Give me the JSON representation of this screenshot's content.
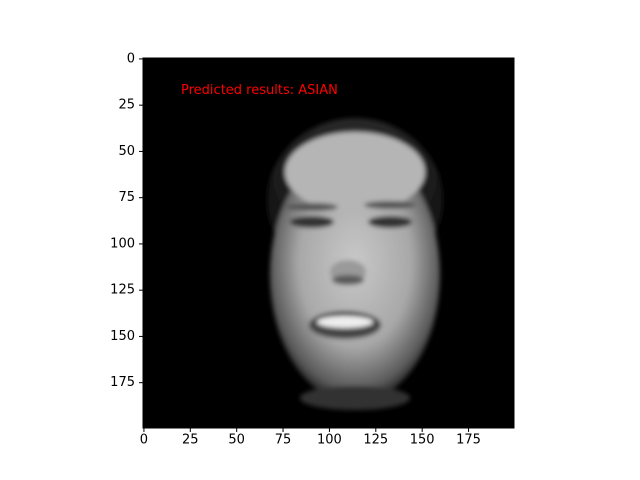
{
  "chart_data": {
    "type": "image",
    "xlim": [
      -0.5,
      199.5
    ],
    "ylim": [
      199.5,
      -0.5
    ],
    "xticks": [
      0,
      25,
      50,
      75,
      100,
      125,
      150,
      175
    ],
    "yticks": [
      0,
      25,
      50,
      75,
      100,
      125,
      150,
      175
    ],
    "annotation": {
      "text": "Predicted results: ASIAN",
      "x": 20,
      "y": 17,
      "color": "#ff0000"
    }
  }
}
